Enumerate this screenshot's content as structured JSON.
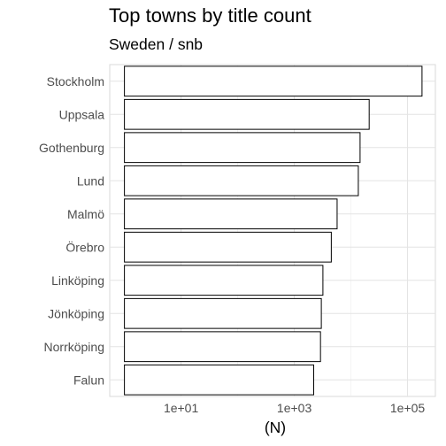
{
  "chart_data": {
    "type": "bar",
    "orientation": "horizontal",
    "title": "Top towns by title count",
    "subtitle": "Sweden / snb",
    "xlabel": "(N)",
    "ylabel": "",
    "x_scale": "log10",
    "xlim": [
      0.55,
      310000
    ],
    "x_ticks": [
      10,
      1000,
      100000
    ],
    "x_tick_labels": [
      "1e+01",
      "1e+03",
      "1e+05"
    ],
    "grid": true,
    "bar_fill": "#ffffff",
    "bar_stroke": "#000000",
    "categories": [
      "Stockholm",
      "Uppsala",
      "Gothenburg",
      "Lund",
      "Malmö",
      "Örebro",
      "Linköping",
      "Jönköping",
      "Norrköping",
      "Falun"
    ],
    "values": [
      180000,
      21000,
      14500,
      13500,
      5700,
      4500,
      3200,
      3000,
      2900,
      2200
    ]
  }
}
